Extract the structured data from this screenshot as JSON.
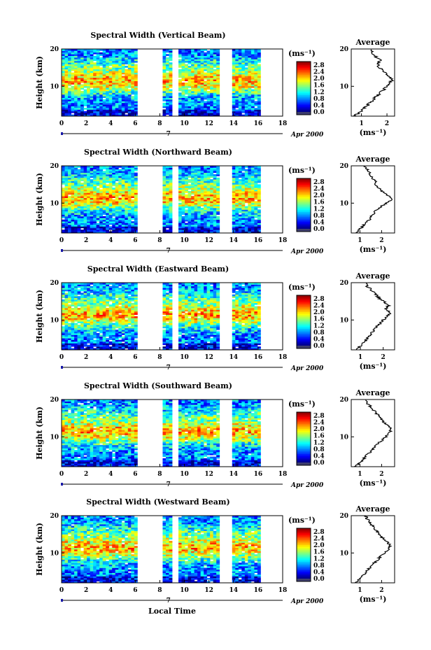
{
  "chart_data": [
    {
      "type": "heatmap",
      "title": "Spectral Width (Vertical Beam)",
      "ylabel": "Height (km)",
      "xlabel": "",
      "x_ticks": [
        "0",
        "2",
        "4",
        "6",
        "8",
        "10",
        "12",
        "14",
        "16",
        "18"
      ],
      "y_ticks": [
        "20",
        "10"
      ],
      "xlim": [
        0,
        18
      ],
      "ylim": [
        2,
        20
      ],
      "date_label": "Apr 2000",
      "day_label": "7",
      "data_gaps_hours": [
        [
          6.2,
          8.3
        ],
        [
          9.1,
          9.5
        ],
        [
          12.8,
          13.8
        ],
        [
          16.1,
          18
        ]
      ],
      "colorbar": {
        "unit": "(ms⁻¹)",
        "ticks": [
          "2.8",
          "2.4",
          "2.0",
          "1.6",
          "1.2",
          "0.8",
          "0.4",
          "0.0"
        ],
        "range": [
          0,
          3.0
        ]
      },
      "average": {
        "title": "Average",
        "xlabel": "(ms⁻¹)",
        "x_ticks": [
          "1",
          "2"
        ],
        "y_ticks": [
          "20",
          "10"
        ],
        "xlim": [
          0.6,
          2.3
        ],
        "profile": [
          [
            2,
            0.7
          ],
          [
            3,
            0.95
          ],
          [
            4,
            1.1
          ],
          [
            5,
            1.25
          ],
          [
            6,
            1.4
          ],
          [
            7,
            1.55
          ],
          [
            8,
            1.7
          ],
          [
            9,
            1.85
          ],
          [
            10,
            2.0
          ],
          [
            11,
            2.15
          ],
          [
            12,
            2.2
          ],
          [
            13,
            2.0
          ],
          [
            14,
            1.85
          ],
          [
            15,
            1.7
          ],
          [
            16,
            1.6
          ],
          [
            17,
            1.75
          ],
          [
            18,
            1.55
          ],
          [
            19,
            1.4
          ],
          [
            20,
            1.35
          ]
        ]
      }
    },
    {
      "type": "heatmap",
      "title": "Spectral Width (Northward Beam)",
      "ylabel": "Height (km)",
      "xlabel": "",
      "x_ticks": [
        "0",
        "2",
        "4",
        "6",
        "8",
        "10",
        "12",
        "14",
        "16",
        "18"
      ],
      "y_ticks": [
        "20",
        "10"
      ],
      "xlim": [
        0,
        18
      ],
      "ylim": [
        2,
        20
      ],
      "date_label": "Apr 2000",
      "day_label": "7",
      "data_gaps_hours": [
        [
          6.2,
          8.3
        ],
        [
          9.1,
          9.5
        ],
        [
          12.8,
          13.8
        ],
        [
          16.1,
          18
        ]
      ],
      "colorbar": {
        "unit": "(ms⁻¹)",
        "ticks": [
          "2.8",
          "2.4",
          "2.0",
          "1.6",
          "1.2",
          "0.8",
          "0.4",
          "0.0"
        ],
        "range": [
          0,
          3.0
        ]
      },
      "average": {
        "title": "Average",
        "xlabel": "(ms⁻¹)",
        "x_ticks": [
          "1",
          "2"
        ],
        "y_ticks": [
          "20",
          "10"
        ],
        "xlim": [
          0.6,
          2.6
        ],
        "profile": [
          [
            2,
            0.8
          ],
          [
            3,
            1.0
          ],
          [
            4,
            1.15
          ],
          [
            5,
            1.35
          ],
          [
            6,
            1.5
          ],
          [
            7,
            1.6
          ],
          [
            8,
            1.75
          ],
          [
            9,
            1.95
          ],
          [
            10,
            2.2
          ],
          [
            11,
            2.45
          ],
          [
            12,
            2.3
          ],
          [
            13,
            2.05
          ],
          [
            14,
            1.9
          ],
          [
            15,
            1.75
          ],
          [
            16,
            1.7
          ],
          [
            17,
            1.55
          ],
          [
            18,
            1.45
          ],
          [
            19,
            1.35
          ],
          [
            20,
            1.2
          ]
        ]
      }
    },
    {
      "type": "heatmap",
      "title": "Spectral Width (Eastward Beam)",
      "ylabel": "Height (km)",
      "xlabel": "",
      "x_ticks": [
        "0",
        "2",
        "4",
        "6",
        "8",
        "10",
        "12",
        "14",
        "16",
        "18"
      ],
      "y_ticks": [
        "20",
        "10"
      ],
      "xlim": [
        0,
        18
      ],
      "ylim": [
        2,
        20
      ],
      "date_label": "Apr 2000",
      "day_label": "7",
      "data_gaps_hours": [
        [
          6.2,
          8.3
        ],
        [
          9.1,
          9.5
        ],
        [
          12.8,
          13.8
        ],
        [
          16.1,
          18
        ]
      ],
      "colorbar": {
        "unit": "(ms⁻¹)",
        "ticks": [
          "2.8",
          "2.4",
          "2.0",
          "1.6",
          "1.2",
          "0.8",
          "0.4",
          "0.0"
        ],
        "range": [
          0,
          3.0
        ]
      },
      "average": {
        "title": "Average",
        "xlabel": "(ms⁻¹)",
        "x_ticks": [
          "1",
          "2"
        ],
        "y_ticks": [
          "20",
          "10"
        ],
        "xlim": [
          0.6,
          2.5
        ],
        "profile": [
          [
            2,
            0.8
          ],
          [
            3,
            1.0
          ],
          [
            4,
            1.15
          ],
          [
            5,
            1.3
          ],
          [
            6,
            1.45
          ],
          [
            7,
            1.55
          ],
          [
            8,
            1.7
          ],
          [
            9,
            1.85
          ],
          [
            10,
            2.0
          ],
          [
            11,
            2.2
          ],
          [
            12,
            2.3
          ],
          [
            13,
            2.1
          ],
          [
            14,
            2.25
          ],
          [
            15,
            2.0
          ],
          [
            16,
            1.8
          ],
          [
            17,
            1.65
          ],
          [
            18,
            1.5
          ],
          [
            19,
            1.3
          ],
          [
            20,
            1.25
          ]
        ]
      }
    },
    {
      "type": "heatmap",
      "title": "Spectral Width (Southward Beam)",
      "ylabel": "Height (km)",
      "xlabel": "",
      "x_ticks": [
        "0",
        "2",
        "4",
        "6",
        "8",
        "10",
        "12",
        "14",
        "16",
        "18"
      ],
      "y_ticks": [
        "20",
        "10"
      ],
      "xlim": [
        0,
        18
      ],
      "ylim": [
        2,
        20
      ],
      "date_label": "Apr 2000",
      "day_label": "7",
      "data_gaps_hours": [
        [
          6.2,
          8.3
        ],
        [
          9.1,
          9.5
        ],
        [
          12.8,
          13.8
        ],
        [
          16.1,
          18
        ]
      ],
      "colorbar": {
        "unit": "(ms⁻¹)",
        "ticks": [
          "2.8",
          "2.4",
          "2.0",
          "1.6",
          "1.2",
          "0.8",
          "0.4",
          "0.0"
        ],
        "range": [
          0,
          3.0
        ]
      },
      "average": {
        "title": "Average",
        "xlabel": "(ms⁻¹)",
        "x_ticks": [
          "1",
          "2"
        ],
        "y_ticks": [
          "20",
          "10"
        ],
        "xlim": [
          0.6,
          2.6
        ],
        "profile": [
          [
            2,
            0.8
          ],
          [
            3,
            1.0
          ],
          [
            4,
            1.15
          ],
          [
            5,
            1.3
          ],
          [
            6,
            1.5
          ],
          [
            7,
            1.65
          ],
          [
            8,
            1.8
          ],
          [
            9,
            2.0
          ],
          [
            10,
            2.2
          ],
          [
            11,
            2.35
          ],
          [
            12,
            2.45
          ],
          [
            13,
            2.3
          ],
          [
            14,
            2.1
          ],
          [
            15,
            1.95
          ],
          [
            16,
            1.8
          ],
          [
            17,
            1.65
          ],
          [
            18,
            1.5
          ],
          [
            19,
            1.35
          ],
          [
            20,
            1.2
          ]
        ]
      }
    },
    {
      "type": "heatmap",
      "title": "Spectral Width (Westward Beam)",
      "ylabel": "Height (km)",
      "xlabel": "Local Time",
      "x_ticks": [
        "0",
        "2",
        "4",
        "6",
        "8",
        "10",
        "12",
        "14",
        "16",
        "18"
      ],
      "y_ticks": [
        "20",
        "10"
      ],
      "xlim": [
        0,
        18
      ],
      "ylim": [
        2,
        20
      ],
      "date_label": "Apr 2000",
      "day_label": "7",
      "data_gaps_hours": [
        [
          6.2,
          8.3
        ],
        [
          9.1,
          9.5
        ],
        [
          12.8,
          13.8
        ],
        [
          16.1,
          18
        ]
      ],
      "colorbar": {
        "unit": "(ms⁻¹)",
        "ticks": [
          "2.8",
          "2.4",
          "2.0",
          "1.6",
          "1.2",
          "0.8",
          "0.4",
          "0.0"
        ],
        "range": [
          0,
          3.0
        ]
      },
      "average": {
        "title": "Average",
        "xlabel": "(ms⁻¹)",
        "x_ticks": [
          "1",
          "2"
        ],
        "y_ticks": [
          "20",
          "10"
        ],
        "xlim": [
          0.6,
          2.6
        ],
        "profile": [
          [
            2,
            0.8
          ],
          [
            3,
            1.0
          ],
          [
            4,
            1.15
          ],
          [
            5,
            1.3
          ],
          [
            6,
            1.45
          ],
          [
            7,
            1.6
          ],
          [
            8,
            1.8
          ],
          [
            9,
            1.95
          ],
          [
            10,
            2.15
          ],
          [
            11,
            2.3
          ],
          [
            12,
            2.4
          ],
          [
            13,
            2.25
          ],
          [
            14,
            2.05
          ],
          [
            15,
            1.9
          ],
          [
            16,
            1.75
          ],
          [
            17,
            1.6
          ],
          [
            18,
            1.5
          ],
          [
            19,
            1.35
          ],
          [
            20,
            1.25
          ]
        ]
      }
    }
  ]
}
